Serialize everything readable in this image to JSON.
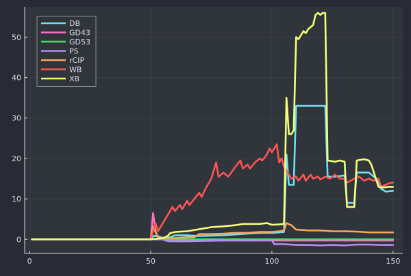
{
  "colors": {
    "background": "#282a36",
    "plot_background": "#30343b",
    "axis": "#d9dde3",
    "grid": "#3c414a",
    "legend_bg": "#30343b",
    "legend_border": "#8c9099"
  },
  "chart_data": {
    "type": "line",
    "title": "",
    "xlabel": "",
    "ylabel": "",
    "xlim": [
      -2,
      154
    ],
    "ylim": [
      -3.5,
      57.5
    ],
    "xticks": [
      0,
      50,
      100,
      150
    ],
    "yticks": [
      0,
      10,
      20,
      30,
      40,
      50
    ],
    "grid": true,
    "legend_position": "top-left",
    "series": [
      {
        "name": "DB",
        "color": "#6fe1f2",
        "points": [
          [
            1,
            0
          ],
          [
            50,
            0
          ],
          [
            51,
            0.8
          ],
          [
            53,
            0.8
          ],
          [
            55,
            0.3
          ],
          [
            58,
            0.5
          ],
          [
            60,
            1.0
          ],
          [
            65,
            1.0
          ],
          [
            70,
            0.8
          ],
          [
            75,
            0.9
          ],
          [
            80,
            1.0
          ],
          [
            85,
            1.2
          ],
          [
            90,
            1.4
          ],
          [
            95,
            1.6
          ],
          [
            100,
            1.6
          ],
          [
            103,
            1.7
          ],
          [
            105,
            1.8
          ],
          [
            106,
            21
          ],
          [
            107,
            13.5
          ],
          [
            109,
            13.5
          ],
          [
            110,
            33
          ],
          [
            115,
            33
          ],
          [
            120,
            33
          ],
          [
            122,
            33
          ],
          [
            123,
            15.5
          ],
          [
            126,
            15.5
          ],
          [
            130,
            15.8
          ],
          [
            131,
            9
          ],
          [
            134,
            9
          ],
          [
            135,
            16.5
          ],
          [
            140,
            16.5
          ],
          [
            143,
            15
          ],
          [
            145,
            12.5
          ],
          [
            147,
            11.8
          ],
          [
            150,
            12
          ]
        ]
      },
      {
        "name": "GD43",
        "color": "#ff6ec7",
        "points": [
          [
            1,
            0
          ],
          [
            50,
            0
          ],
          [
            51,
            6.5
          ],
          [
            52,
            2
          ],
          [
            53,
            0.5
          ],
          [
            55,
            0
          ],
          [
            60,
            -0.1
          ],
          [
            70,
            -0.2
          ],
          [
            80,
            -0.3
          ],
          [
            90,
            -0.3
          ],
          [
            100,
            -0.3
          ],
          [
            110,
            -0.3
          ],
          [
            120,
            -0.3
          ],
          [
            130,
            -0.3
          ],
          [
            140,
            -0.3
          ],
          [
            150,
            -0.3
          ]
        ]
      },
      {
        "name": "GD53",
        "color": "#40e06a",
        "points": [
          [
            1,
            0
          ],
          [
            50,
            0
          ],
          [
            60,
            0
          ],
          [
            70,
            0
          ],
          [
            80,
            0
          ],
          [
            90,
            0
          ],
          [
            100,
            0
          ],
          [
            110,
            0
          ],
          [
            120,
            0
          ],
          [
            130,
            0
          ],
          [
            140,
            0
          ],
          [
            150,
            0
          ]
        ]
      },
      {
        "name": "PS",
        "color": "#b58cf0",
        "points": [
          [
            1,
            0
          ],
          [
            50,
            0
          ],
          [
            55,
            0
          ],
          [
            56,
            -0.3
          ],
          [
            58,
            -0.5
          ],
          [
            65,
            -0.5
          ],
          [
            70,
            -0.4
          ],
          [
            80,
            -0.3
          ],
          [
            90,
            -0.3
          ],
          [
            100,
            -0.2
          ],
          [
            101,
            -1.2
          ],
          [
            105,
            -1.2
          ],
          [
            110,
            -1.4
          ],
          [
            115,
            -1.4
          ],
          [
            120,
            -1.5
          ],
          [
            125,
            -1.4
          ],
          [
            130,
            -1.5
          ],
          [
            135,
            -1.3
          ],
          [
            140,
            -1.3
          ],
          [
            145,
            -1.4
          ],
          [
            150,
            -1.4
          ]
        ]
      },
      {
        "name": "rCIP",
        "color": "#f5a95b",
        "points": [
          [
            1,
            0
          ],
          [
            50,
            0
          ],
          [
            51,
            3.2
          ],
          [
            53,
            0.5
          ],
          [
            56,
            0.3
          ],
          [
            60,
            0.3
          ],
          [
            65,
            0.5
          ],
          [
            68,
            0.5
          ],
          [
            70,
            1.3
          ],
          [
            75,
            1.3
          ],
          [
            80,
            1.4
          ],
          [
            85,
            1.6
          ],
          [
            90,
            1.6
          ],
          [
            95,
            1.8
          ],
          [
            100,
            1.8
          ],
          [
            103,
            2.0
          ],
          [
            105,
            2.2
          ],
          [
            106,
            4.0
          ],
          [
            108,
            3.5
          ],
          [
            110,
            2.4
          ],
          [
            115,
            2.2
          ],
          [
            120,
            2.2
          ],
          [
            125,
            2.0
          ],
          [
            130,
            2.0
          ],
          [
            135,
            1.9
          ],
          [
            140,
            1.7
          ],
          [
            145,
            1.7
          ],
          [
            150,
            1.7
          ]
        ]
      },
      {
        "name": "WB",
        "color": "#ff5555",
        "points": [
          [
            1,
            0
          ],
          [
            50,
            0
          ],
          [
            51,
            2
          ],
          [
            52,
            4
          ],
          [
            53,
            2
          ],
          [
            55,
            4
          ],
          [
            57,
            6
          ],
          [
            59,
            8
          ],
          [
            60,
            7
          ],
          [
            62,
            8.5
          ],
          [
            63,
            7.5
          ],
          [
            65,
            9.5
          ],
          [
            66,
            8.5
          ],
          [
            68,
            10
          ],
          [
            70,
            11.5
          ],
          [
            71,
            10.5
          ],
          [
            73,
            13
          ],
          [
            75,
            15
          ],
          [
            77,
            19
          ],
          [
            78,
            15.5
          ],
          [
            80,
            16.5
          ],
          [
            82,
            15.5
          ],
          [
            85,
            18
          ],
          [
            87,
            19.5
          ],
          [
            88,
            17.5
          ],
          [
            90,
            18.5
          ],
          [
            91,
            17.5
          ],
          [
            93,
            19
          ],
          [
            95,
            20
          ],
          [
            96,
            19.5
          ],
          [
            98,
            21
          ],
          [
            99,
            22.5
          ],
          [
            100,
            21.5
          ],
          [
            102,
            23.5
          ],
          [
            103,
            19
          ],
          [
            104,
            20
          ],
          [
            105,
            18
          ],
          [
            106,
            17
          ],
          [
            108,
            15
          ],
          [
            110,
            15.5
          ],
          [
            111,
            14.5
          ],
          [
            113,
            16
          ],
          [
            114,
            14.5
          ],
          [
            116,
            16
          ],
          [
            117,
            15
          ],
          [
            119,
            15.5
          ],
          [
            120,
            14.8
          ],
          [
            122,
            15.5
          ],
          [
            124,
            15
          ],
          [
            126,
            16
          ],
          [
            128,
            15
          ],
          [
            130,
            15
          ],
          [
            131,
            14
          ],
          [
            134,
            15
          ],
          [
            136,
            15.5
          ],
          [
            138,
            14.5
          ],
          [
            140,
            15
          ],
          [
            142,
            14.5
          ],
          [
            144,
            15
          ],
          [
            145,
            13
          ],
          [
            147,
            13.5
          ],
          [
            149,
            14
          ],
          [
            150,
            14
          ]
        ]
      },
      {
        "name": "XB",
        "color": "#f5ff7a",
        "points": [
          [
            1,
            0
          ],
          [
            50,
            0
          ],
          [
            55,
            0.3
          ],
          [
            57,
            0.8
          ],
          [
            58,
            1.5
          ],
          [
            60,
            1.8
          ],
          [
            65,
            2.0
          ],
          [
            70,
            2.5
          ],
          [
            75,
            3.0
          ],
          [
            80,
            3.2
          ],
          [
            85,
            3.5
          ],
          [
            88,
            3.8
          ],
          [
            90,
            3.8
          ],
          [
            95,
            3.8
          ],
          [
            98,
            4.0
          ],
          [
            100,
            3.6
          ],
          [
            103,
            3.7
          ],
          [
            105,
            3.8
          ],
          [
            106,
            35
          ],
          [
            107,
            26
          ],
          [
            108,
            26
          ],
          [
            109,
            27
          ],
          [
            110,
            50
          ],
          [
            111,
            49.5
          ],
          [
            112,
            50.5
          ],
          [
            113,
            51.5
          ],
          [
            114,
            51
          ],
          [
            115,
            52
          ],
          [
            116,
            52.5
          ],
          [
            117,
            53
          ],
          [
            118,
            55.5
          ],
          [
            119,
            56
          ],
          [
            120,
            55.5
          ],
          [
            121,
            56
          ],
          [
            122,
            56
          ],
          [
            123,
            19.5
          ],
          [
            126,
            19.2
          ],
          [
            128,
            19.5
          ],
          [
            130,
            19.2
          ],
          [
            131,
            8
          ],
          [
            134,
            8
          ],
          [
            135,
            19.5
          ],
          [
            138,
            19.8
          ],
          [
            140,
            19.5
          ],
          [
            141,
            18.5
          ],
          [
            144,
            13
          ],
          [
            146,
            12.8
          ],
          [
            148,
            13
          ],
          [
            150,
            13
          ]
        ]
      }
    ]
  }
}
